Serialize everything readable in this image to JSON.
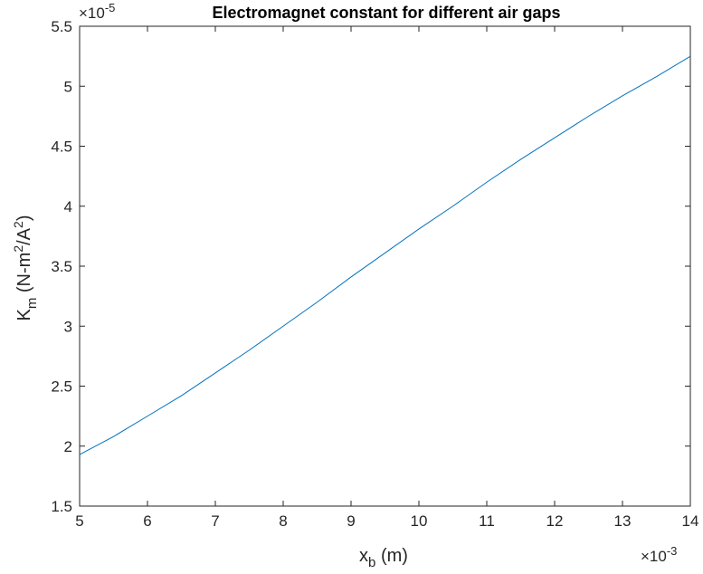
{
  "chart_data": {
    "type": "line",
    "title": "Electromagnet constant for different air gaps",
    "xlabel": "x",
    "xlabel_sub": "b",
    "xlabel_rest": " (m)",
    "ylabel_base": "K",
    "ylabel_sub": "m",
    "ylabel_part1": " (N-m",
    "ylabel_sup1": "2",
    "ylabel_part2": "/A",
    "ylabel_sup2": "2",
    "ylabel_part3": ")",
    "x_exponent_prefix": "×10",
    "x_exponent": "-3",
    "y_exponent_prefix": "×10",
    "y_exponent": "-5",
    "xlim": [
      5,
      14
    ],
    "ylim": [
      1.5,
      5.5
    ],
    "x_ticks": [
      5,
      6,
      7,
      8,
      9,
      10,
      11,
      12,
      13,
      14
    ],
    "x_tick_labels": [
      "5",
      "6",
      "7",
      "8",
      "9",
      "10",
      "11",
      "12",
      "13",
      "14"
    ],
    "y_ticks": [
      1.5,
      2,
      2.5,
      3,
      3.5,
      4,
      4.5,
      5,
      5.5
    ],
    "y_tick_labels": [
      "1.5",
      "2",
      "2.5",
      "3",
      "3.5",
      "4",
      "4.5",
      "5",
      "5.5"
    ],
    "grid": false,
    "line_color": "#0072BD",
    "series": [
      {
        "x": [
          5.0,
          5.5,
          6.0,
          6.5,
          7.0,
          7.5,
          8.0,
          8.5,
          9.0,
          9.5,
          10.0,
          10.5,
          11.0,
          11.5,
          12.0,
          12.5,
          13.0,
          13.5,
          14.0
        ],
        "values": [
          1.93,
          2.08,
          2.25,
          2.42,
          2.61,
          2.8,
          3.0,
          3.2,
          3.41,
          3.61,
          3.81,
          4.0,
          4.2,
          4.39,
          4.57,
          4.75,
          4.92,
          5.08,
          5.25
        ]
      }
    ]
  }
}
